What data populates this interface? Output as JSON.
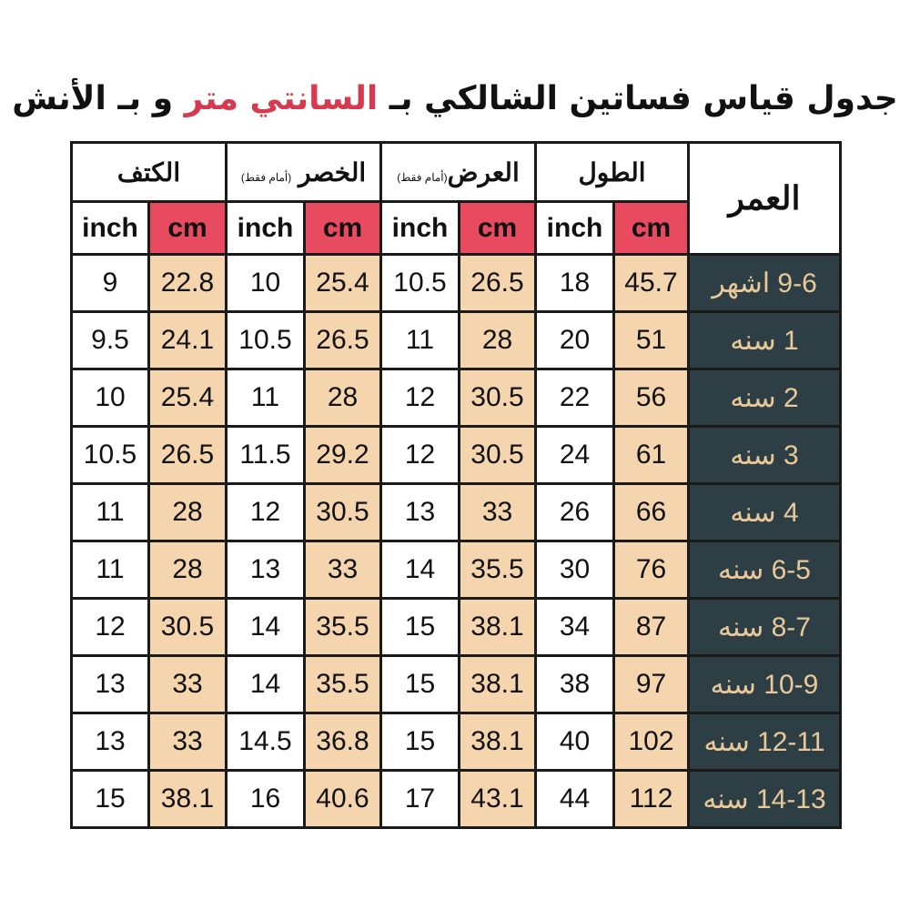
{
  "title": {
    "prefix": "جدول قياس فساتين الشالكي بـ ",
    "accent": "السانتي متر",
    "suffix": " و بـ الأنش"
  },
  "colors": {
    "accent": "#d63a4f",
    "cm_header": "#e84a5f",
    "cm_cell": "#f5d5ad",
    "age_bg": "#2d3e44",
    "age_text": "#e9c99a"
  },
  "headers": {
    "shoulder": "الكتف",
    "waist": "الخصر",
    "waist_note": "(أمام فقط)",
    "width": "العرض",
    "width_note": "(أمام فقط)",
    "length": "الطول",
    "age": "العمر",
    "inch": "inch",
    "cm": "cm"
  },
  "rows": [
    {
      "age": "9-6 اشهر",
      "length_cm": "45.7",
      "length_in": "18",
      "width_cm": "26.5",
      "width_in": "10.5",
      "waist_cm": "25.4",
      "waist_in": "10",
      "shoulder_cm": "22.8",
      "shoulder_in": "9"
    },
    {
      "age": "1 سنه",
      "length_cm": "51",
      "length_in": "20",
      "width_cm": "28",
      "width_in": "11",
      "waist_cm": "26.5",
      "waist_in": "10.5",
      "shoulder_cm": "24.1",
      "shoulder_in": "9.5"
    },
    {
      "age": "2 سنه",
      "length_cm": "56",
      "length_in": "22",
      "width_cm": "30.5",
      "width_in": "12",
      "waist_cm": "28",
      "waist_in": "11",
      "shoulder_cm": "25.4",
      "shoulder_in": "10"
    },
    {
      "age": "3 سنه",
      "length_cm": "61",
      "length_in": "24",
      "width_cm": "30.5",
      "width_in": "12",
      "waist_cm": "29.2",
      "waist_in": "11.5",
      "shoulder_cm": "26.5",
      "shoulder_in": "10.5"
    },
    {
      "age": "4 سنه",
      "length_cm": "66",
      "length_in": "26",
      "width_cm": "33",
      "width_in": "13",
      "waist_cm": "30.5",
      "waist_in": "12",
      "shoulder_cm": "28",
      "shoulder_in": "11"
    },
    {
      "age": "6-5 سنه",
      "length_cm": "76",
      "length_in": "30",
      "width_cm": "35.5",
      "width_in": "14",
      "waist_cm": "33",
      "waist_in": "13",
      "shoulder_cm": "28",
      "shoulder_in": "11"
    },
    {
      "age": "8-7 سنه",
      "length_cm": "87",
      "length_in": "34",
      "width_cm": "38.1",
      "width_in": "15",
      "waist_cm": "35.5",
      "waist_in": "14",
      "shoulder_cm": "30.5",
      "shoulder_in": "12"
    },
    {
      "age": "10-9 سنه",
      "length_cm": "97",
      "length_in": "38",
      "width_cm": "38.1",
      "width_in": "15",
      "waist_cm": "35.5",
      "waist_in": "14",
      "shoulder_cm": "33",
      "shoulder_in": "13"
    },
    {
      "age": "12-11 سنه",
      "length_cm": "102",
      "length_in": "40",
      "width_cm": "38.1",
      "width_in": "15",
      "waist_cm": "36.8",
      "waist_in": "14.5",
      "shoulder_cm": "33",
      "shoulder_in": "13"
    },
    {
      "age": "14-13 سنه",
      "length_cm": "112",
      "length_in": "44",
      "width_cm": "43.1",
      "width_in": "17",
      "waist_cm": "40.6",
      "waist_in": "16",
      "shoulder_cm": "38.1",
      "shoulder_in": "15"
    }
  ]
}
